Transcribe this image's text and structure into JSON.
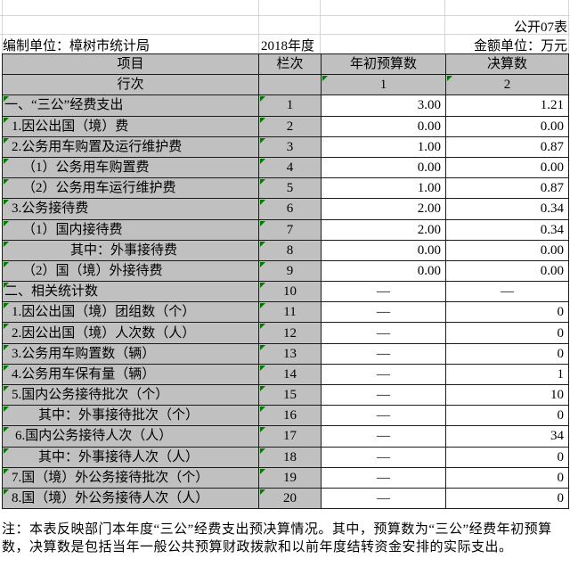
{
  "header": {
    "sheet_label": "公开07表",
    "unit_label": "编制单位：樟树市统计局",
    "year_label": "2018年度",
    "money_unit_label": "金额单位：万元"
  },
  "table": {
    "columns": [
      "项目",
      "栏次",
      "年初预算数",
      "决算数"
    ],
    "row_header_label": "行次",
    "column_numbers": [
      "1",
      "2"
    ],
    "rows": [
      {
        "label": "一、“三公”经费支出",
        "line": "1",
        "budget": "3.00",
        "final": "1.21",
        "indent": 2
      },
      {
        "label": "1.因公出国（境）费",
        "line": "2",
        "budget": "0.00",
        "final": "0.00",
        "indent": 10
      },
      {
        "label": "2.公务用车购置及运行维护费",
        "line": "3",
        "budget": "1.00",
        "final": "0.87",
        "indent": 10
      },
      {
        "label": "（1）公务用车购置费",
        "line": "4",
        "budget": "0.00",
        "final": "0.00",
        "indent": 22
      },
      {
        "label": "（2）公务用车运行维护费",
        "line": "5",
        "budget": "1.00",
        "final": "0.87",
        "indent": 22
      },
      {
        "label": "3.公务接待费",
        "line": "6",
        "budget": "2.00",
        "final": "0.34",
        "indent": 10
      },
      {
        "label": "（1）国内接待费",
        "line": "7",
        "budget": "2.00",
        "final": "0.34",
        "indent": 22
      },
      {
        "label": "其中：外事接待费",
        "line": "8",
        "budget": "0.00",
        "final": "0.00",
        "indent": 76
      },
      {
        "label": "（2）国（境）外接待费",
        "line": "9",
        "budget": "0.00",
        "final": "0.00",
        "indent": 22
      },
      {
        "label": "二、相关统计数",
        "line": "10",
        "budget": "—",
        "final": "—",
        "indent": 2
      },
      {
        "label": "1.因公出国（境）团组数（个）",
        "line": "11",
        "budget": "—",
        "final": "0",
        "indent": 10
      },
      {
        "label": "2.因公出国（境）人次数（人）",
        "line": "12",
        "budget": "—",
        "final": "0",
        "indent": 10
      },
      {
        "label": "3.公务用车购置数（辆）",
        "line": "13",
        "budget": "—",
        "final": "0",
        "indent": 10
      },
      {
        "label": "4.公务用车保有量（辆）",
        "line": "14",
        "budget": "—",
        "final": "1",
        "indent": 10
      },
      {
        "label": "5.国内公务接待批次（个）",
        "line": "15",
        "budget": "—",
        "final": "10",
        "indent": 10
      },
      {
        "label": "其中：外事接待批次（个）",
        "line": "16",
        "budget": "—",
        "final": "0",
        "indent": 40
      },
      {
        "label": "6.国内公务接待人次（人）",
        "line": "17",
        "budget": "—",
        "final": "34",
        "indent": 14
      },
      {
        "label": "其中：外事接待人次（人）",
        "line": "18",
        "budget": "—",
        "final": "0",
        "indent": 40
      },
      {
        "label": "7.国（境）外公务接待批次（个）",
        "line": "19",
        "budget": "—",
        "final": "0",
        "indent": 10
      },
      {
        "label": "8.国（境）外公务接待人次（人）",
        "line": "20",
        "budget": "—",
        "final": "0",
        "indent": 10
      }
    ]
  },
  "note": "注：本表反映部门本年度“三公”经费支出预决算情况。其中，预算数为“三公”经费年初预算数，决算数是包括当年一般公共预算财政拨款和以前年度结转资金安排的实际支出。",
  "colors": {
    "cell_gray": "#c0c0c0",
    "triangle_green": "#007d00",
    "border_dark": "#1c1c1c",
    "gridline_light": "#d6d6d6"
  }
}
